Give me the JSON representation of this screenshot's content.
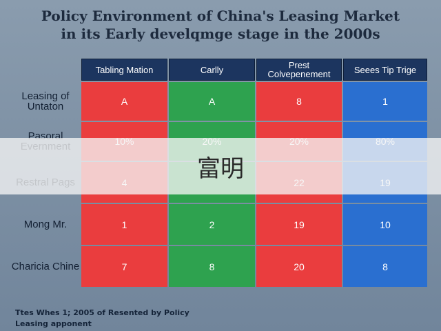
{
  "title": {
    "line1": "Policy Environment of China's Leasing Market",
    "line2": "in its Early develqmge stage in the 2000s"
  },
  "table": {
    "columns": [
      "Tabling Mation",
      "Carlly",
      "Prest Colvepenement",
      "Seees Tip Trige"
    ],
    "rows": [
      {
        "label": "Leasing of Untaton",
        "values": [
          "A",
          "A",
          "8",
          "1"
        ]
      },
      {
        "label": "Pasoral Evernment",
        "values": [
          "10%",
          "20%",
          "20%",
          "80%"
        ]
      },
      {
        "label": "Restral Pags",
        "values": [
          "4",
          "",
          "22",
          "19"
        ]
      },
      {
        "label": "Mong Mr.",
        "values": [
          "1",
          "2",
          "19",
          "10"
        ]
      },
      {
        "label": "Charicia Chine",
        "values": [
          "7",
          "8",
          "20",
          "8"
        ]
      }
    ],
    "column_colors": [
      "#ea3d3e",
      "#2ea24f",
      "#ea3d3e",
      "#2a6fd0"
    ]
  },
  "overlay": {
    "text": "富明"
  },
  "footnote": {
    "line1": "Ttes Whes 1; 2005 of Resented by Policy",
    "line2": "Leasing apponent"
  }
}
